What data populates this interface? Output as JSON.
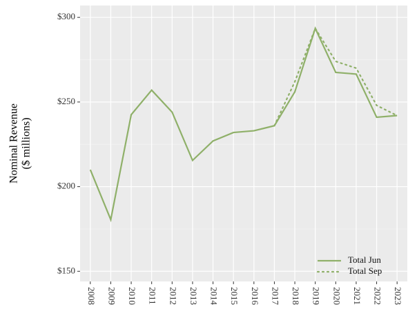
{
  "chart_data": {
    "type": "line",
    "ylabel": [
      "Nominal Revenue",
      "($ millions)"
    ],
    "x": [
      2008,
      2009,
      2010,
      2011,
      2012,
      2013,
      2014,
      2015,
      2016,
      2017,
      2018,
      2019,
      2020,
      2021,
      2022,
      2023
    ],
    "series": [
      {
        "name": "Total Jun",
        "color": "#8fb069",
        "dash": "solid",
        "values": [
          210,
          180.5,
          242.5,
          257,
          244,
          215.5,
          227,
          232,
          233,
          236,
          256,
          293.5,
          267.5,
          266.5,
          241,
          242
        ]
      },
      {
        "name": "Total Sep",
        "color": "#8fb069",
        "dash": "dotted",
        "values": [
          null,
          null,
          null,
          null,
          null,
          null,
          null,
          null,
          null,
          236,
          262,
          293.5,
          274,
          270,
          248,
          242
        ]
      }
    ],
    "xlim": [
      2007.5,
      2023.5
    ],
    "xticks": [
      2008,
      2009,
      2010,
      2011,
      2012,
      2013,
      2014,
      2015,
      2016,
      2017,
      2018,
      2019,
      2020,
      2021,
      2022,
      2023
    ],
    "ylim": [
      144,
      307
    ],
    "yticks": [
      {
        "value": 150,
        "label": "$150"
      },
      {
        "value": 200,
        "label": "$200"
      },
      {
        "value": 250,
        "label": "$250"
      },
      {
        "value": 300,
        "label": "$300"
      }
    ],
    "grid": true,
    "legend": "bottom-right"
  }
}
